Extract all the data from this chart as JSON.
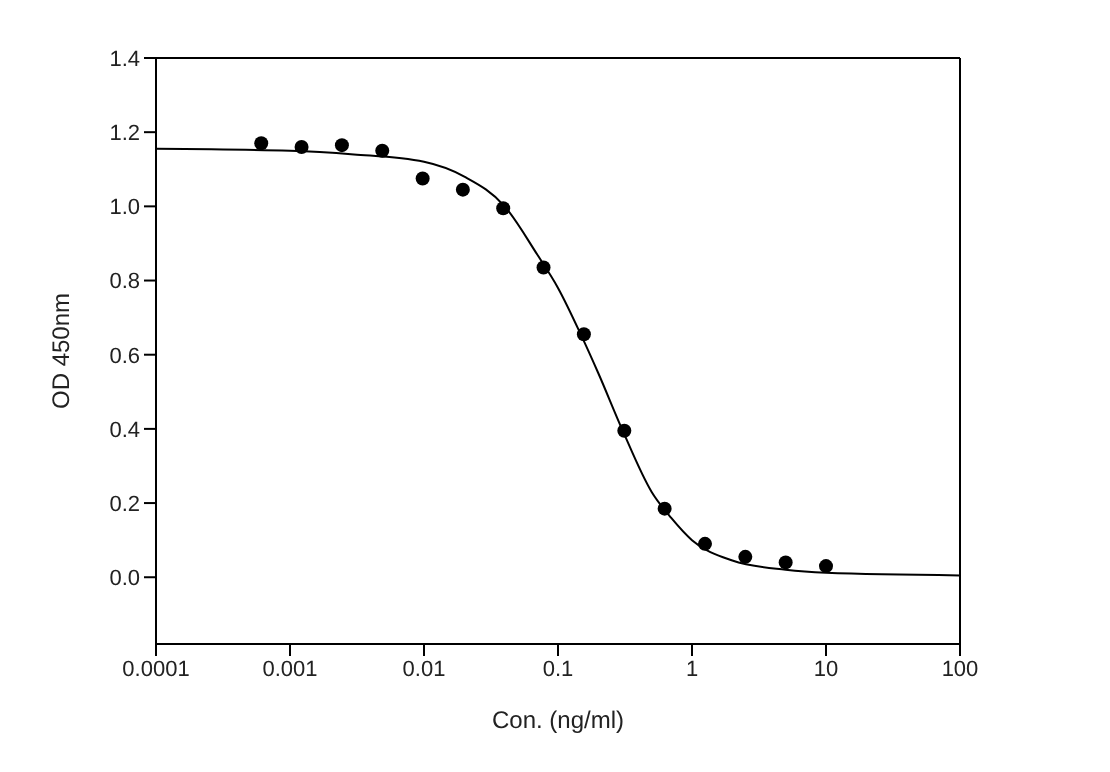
{
  "chart_data": {
    "type": "scatter",
    "xlabel": "Con. (ng/ml)",
    "ylabel": "OD 450nm",
    "log": "x",
    "xlim": [
      0.0001,
      100
    ],
    "xticks": [
      0.0001,
      0.001,
      0.01,
      0.1,
      1,
      10,
      100
    ],
    "ylim": [
      -0.18,
      1.4
    ],
    "yticks": [
      {
        "value": 0,
        "label": "0.0"
      },
      {
        "value": 0.2,
        "label": "0.2"
      },
      {
        "value": 0.4,
        "label": "0.4"
      },
      {
        "value": 0.6,
        "label": "0.6"
      },
      {
        "value": 0.8,
        "label": "0.8"
      },
      {
        "value": 1,
        "label": "1.0"
      },
      {
        "value": 1.2,
        "label": "1.2"
      },
      {
        "value": 1.4,
        "label": "1.4"
      }
    ],
    "grid": false,
    "series": [
      {
        "type": "line",
        "color": "#000000",
        "line_style": "solid",
        "x": [
          0.0001,
          0.001,
          0.003,
          0.01,
          0.02,
          0.04,
          0.07,
          0.1,
          0.15,
          0.2,
          0.3,
          0.5,
          0.7,
          1,
          2,
          5,
          10,
          100
        ],
        "values": [
          1.155,
          1.15,
          1.14,
          1.12,
          1.08,
          1.0,
          0.87,
          0.78,
          0.65,
          0.55,
          0.4,
          0.23,
          0.16,
          0.1,
          0.045,
          0.02,
          0.012,
          0.005
        ]
      },
      {
        "color": "#000000",
        "marker": "circle",
        "x": [
          0.00061,
          0.00122,
          0.00244,
          0.00488,
          0.00977,
          0.0195,
          0.039,
          0.078,
          0.156,
          0.3125,
          0.625,
          1.25,
          2.5,
          5,
          10
        ],
        "values": [
          1.17,
          1.16,
          1.165,
          1.15,
          1.075,
          1.045,
          0.995,
          0.835,
          0.655,
          0.395,
          0.185,
          0.09,
          0.055,
          0.04,
          0.03
        ]
      }
    ]
  }
}
